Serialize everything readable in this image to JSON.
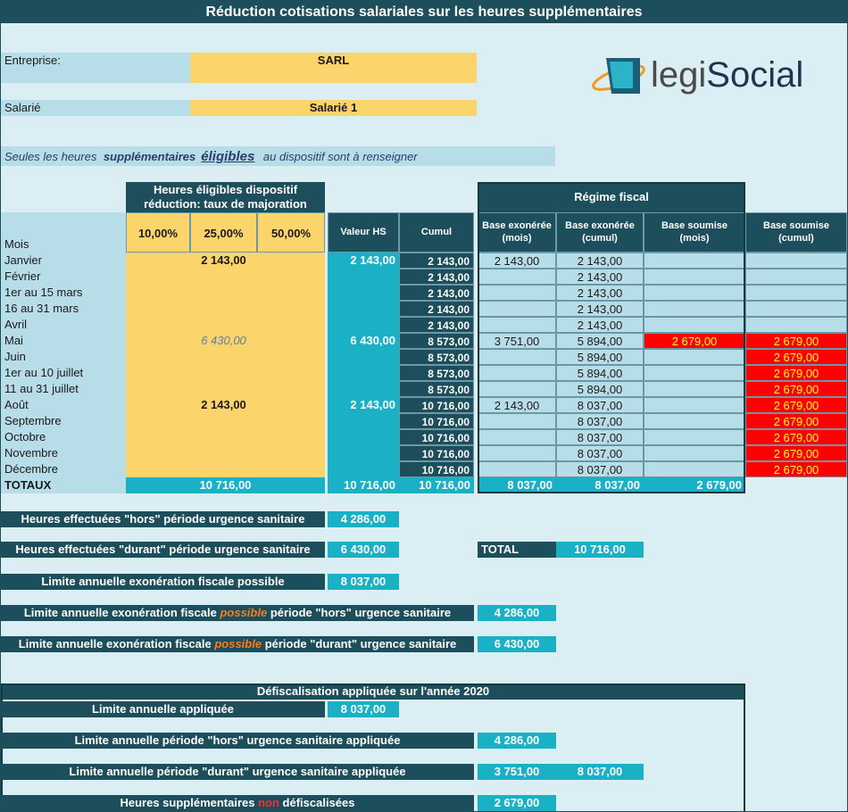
{
  "title": "Réduction cotisations salariales sur les heures supplémentaires",
  "entreprise": {
    "label": "Entreprise:",
    "value": "SARL"
  },
  "salarie": {
    "label": "Salarié",
    "value": "Salarié 1"
  },
  "note": [
    "Seules les heures ",
    "supplémentaires",
    "éligibles",
    " au dispositif sont à renseigner"
  ],
  "logo": [
    "legi",
    "Social"
  ],
  "table": {
    "group_header": "Heures éligibles dispositif réduction: taux de majoration",
    "regime_header": "Régime fiscal",
    "columns": [
      "Mois",
      "10,00%",
      "25,00%",
      "50,00%",
      "Valeur HS",
      "Cumul",
      "Base exonérée (mois)",
      "Base exonérée (cumul)",
      "Base soumise (mois)",
      "Base soumise (cumul)"
    ],
    "rows": [
      [
        "Janvier",
        null,
        "2 143,00",
        null,
        "2 143,00",
        "2 143,00",
        "2 143,00",
        "2 143,00",
        null,
        null
      ],
      [
        "Février",
        null,
        null,
        null,
        null,
        "2 143,00",
        null,
        "2 143,00",
        null,
        null
      ],
      [
        "1er au 15 mars",
        null,
        null,
        null,
        null,
        "2 143,00",
        null,
        "2 143,00",
        null,
        null
      ],
      [
        "16 au 31 mars",
        null,
        null,
        null,
        null,
        "2 143,00",
        null,
        "2 143,00",
        null,
        null
      ],
      [
        "Avril",
        null,
        null,
        null,
        null,
        "2 143,00",
        null,
        "2 143,00",
        null,
        null
      ],
      [
        "Mai",
        null,
        "6 430,00",
        null,
        "6 430,00",
        "8 573,00",
        "3 751,00",
        "5 894,00",
        "2 679,00",
        "2 679,00"
      ],
      [
        "Juin",
        null,
        null,
        null,
        null,
        "8 573,00",
        null,
        "5 894,00",
        null,
        "2 679,00"
      ],
      [
        "1er au 10 juillet",
        null,
        null,
        null,
        null,
        "8 573,00",
        null,
        "5 894,00",
        null,
        "2 679,00"
      ],
      [
        "11 au 31 juillet",
        null,
        null,
        null,
        null,
        "8 573,00",
        null,
        "5 894,00",
        null,
        "2 679,00"
      ],
      [
        "Août",
        null,
        "2 143,00",
        null,
        "2 143,00",
        "10 716,00",
        "2 143,00",
        "8 037,00",
        null,
        "2 679,00"
      ],
      [
        "Septembre",
        null,
        null,
        null,
        null,
        "10 716,00",
        null,
        "8 037,00",
        null,
        "2 679,00"
      ],
      [
        "Octobre",
        null,
        null,
        null,
        null,
        "10 716,00",
        null,
        "8 037,00",
        null,
        "2 679,00"
      ],
      [
        "Novembre",
        null,
        null,
        null,
        null,
        "10 716,00",
        null,
        "8 037,00",
        null,
        "2 679,00"
      ],
      [
        "Décembre",
        null,
        null,
        null,
        null,
        "10 716,00",
        null,
        "8 037,00",
        null,
        "2 679,00"
      ]
    ],
    "totals": {
      "label": "TOTAUX",
      "heures": "10 716,00",
      "valeur": "10 716,00",
      "cumul": "10 716,00",
      "exo_mois": "8 037,00",
      "exo_cumul": "8 037,00",
      "soumise": "2 679,00"
    }
  },
  "summary": [
    {
      "label": [
        "Heures effectuées \"hors\" période urgence sanitaire"
      ],
      "value": "4 286,00"
    },
    {
      "label": [
        "Heures effectuées \"durant\" période urgence sanitaire"
      ],
      "value": "6 430,00",
      "extra_label": "TOTAL",
      "extra_value": "10 716,00"
    },
    {
      "label": [
        "Limite annuelle exonération fiscale possible"
      ],
      "value": "8 037,00"
    },
    {
      "label": [
        "Limite annuelle exonération fiscale ",
        "possible",
        " période \"hors\" urgence sanitaire"
      ],
      "value": "4 286,00"
    },
    {
      "label": [
        "Limite annuelle exonération fiscale ",
        "possible",
        " période \"durant\" urgence sanitaire"
      ],
      "value": "6 430,00"
    }
  ],
  "defisc": {
    "header": "Défiscalisation appliquée sur l'année 2020",
    "lines": [
      {
        "label": [
          "Limite annuelle appliquée"
        ],
        "value": "8 037,00"
      },
      {
        "label": [
          "Limite annuelle période \"hors\" urgence sanitaire appliquée"
        ],
        "value": "4 286,00"
      },
      {
        "label": [
          "Limite annuelle période \"durant\" urgence sanitaire appliquée"
        ],
        "value": "3 751,00",
        "value2": "8 037,00"
      },
      {
        "label": [
          "Heures supplémentaires ",
          "non",
          " défiscalisées"
        ],
        "value": "2 679,00"
      }
    ]
  }
}
